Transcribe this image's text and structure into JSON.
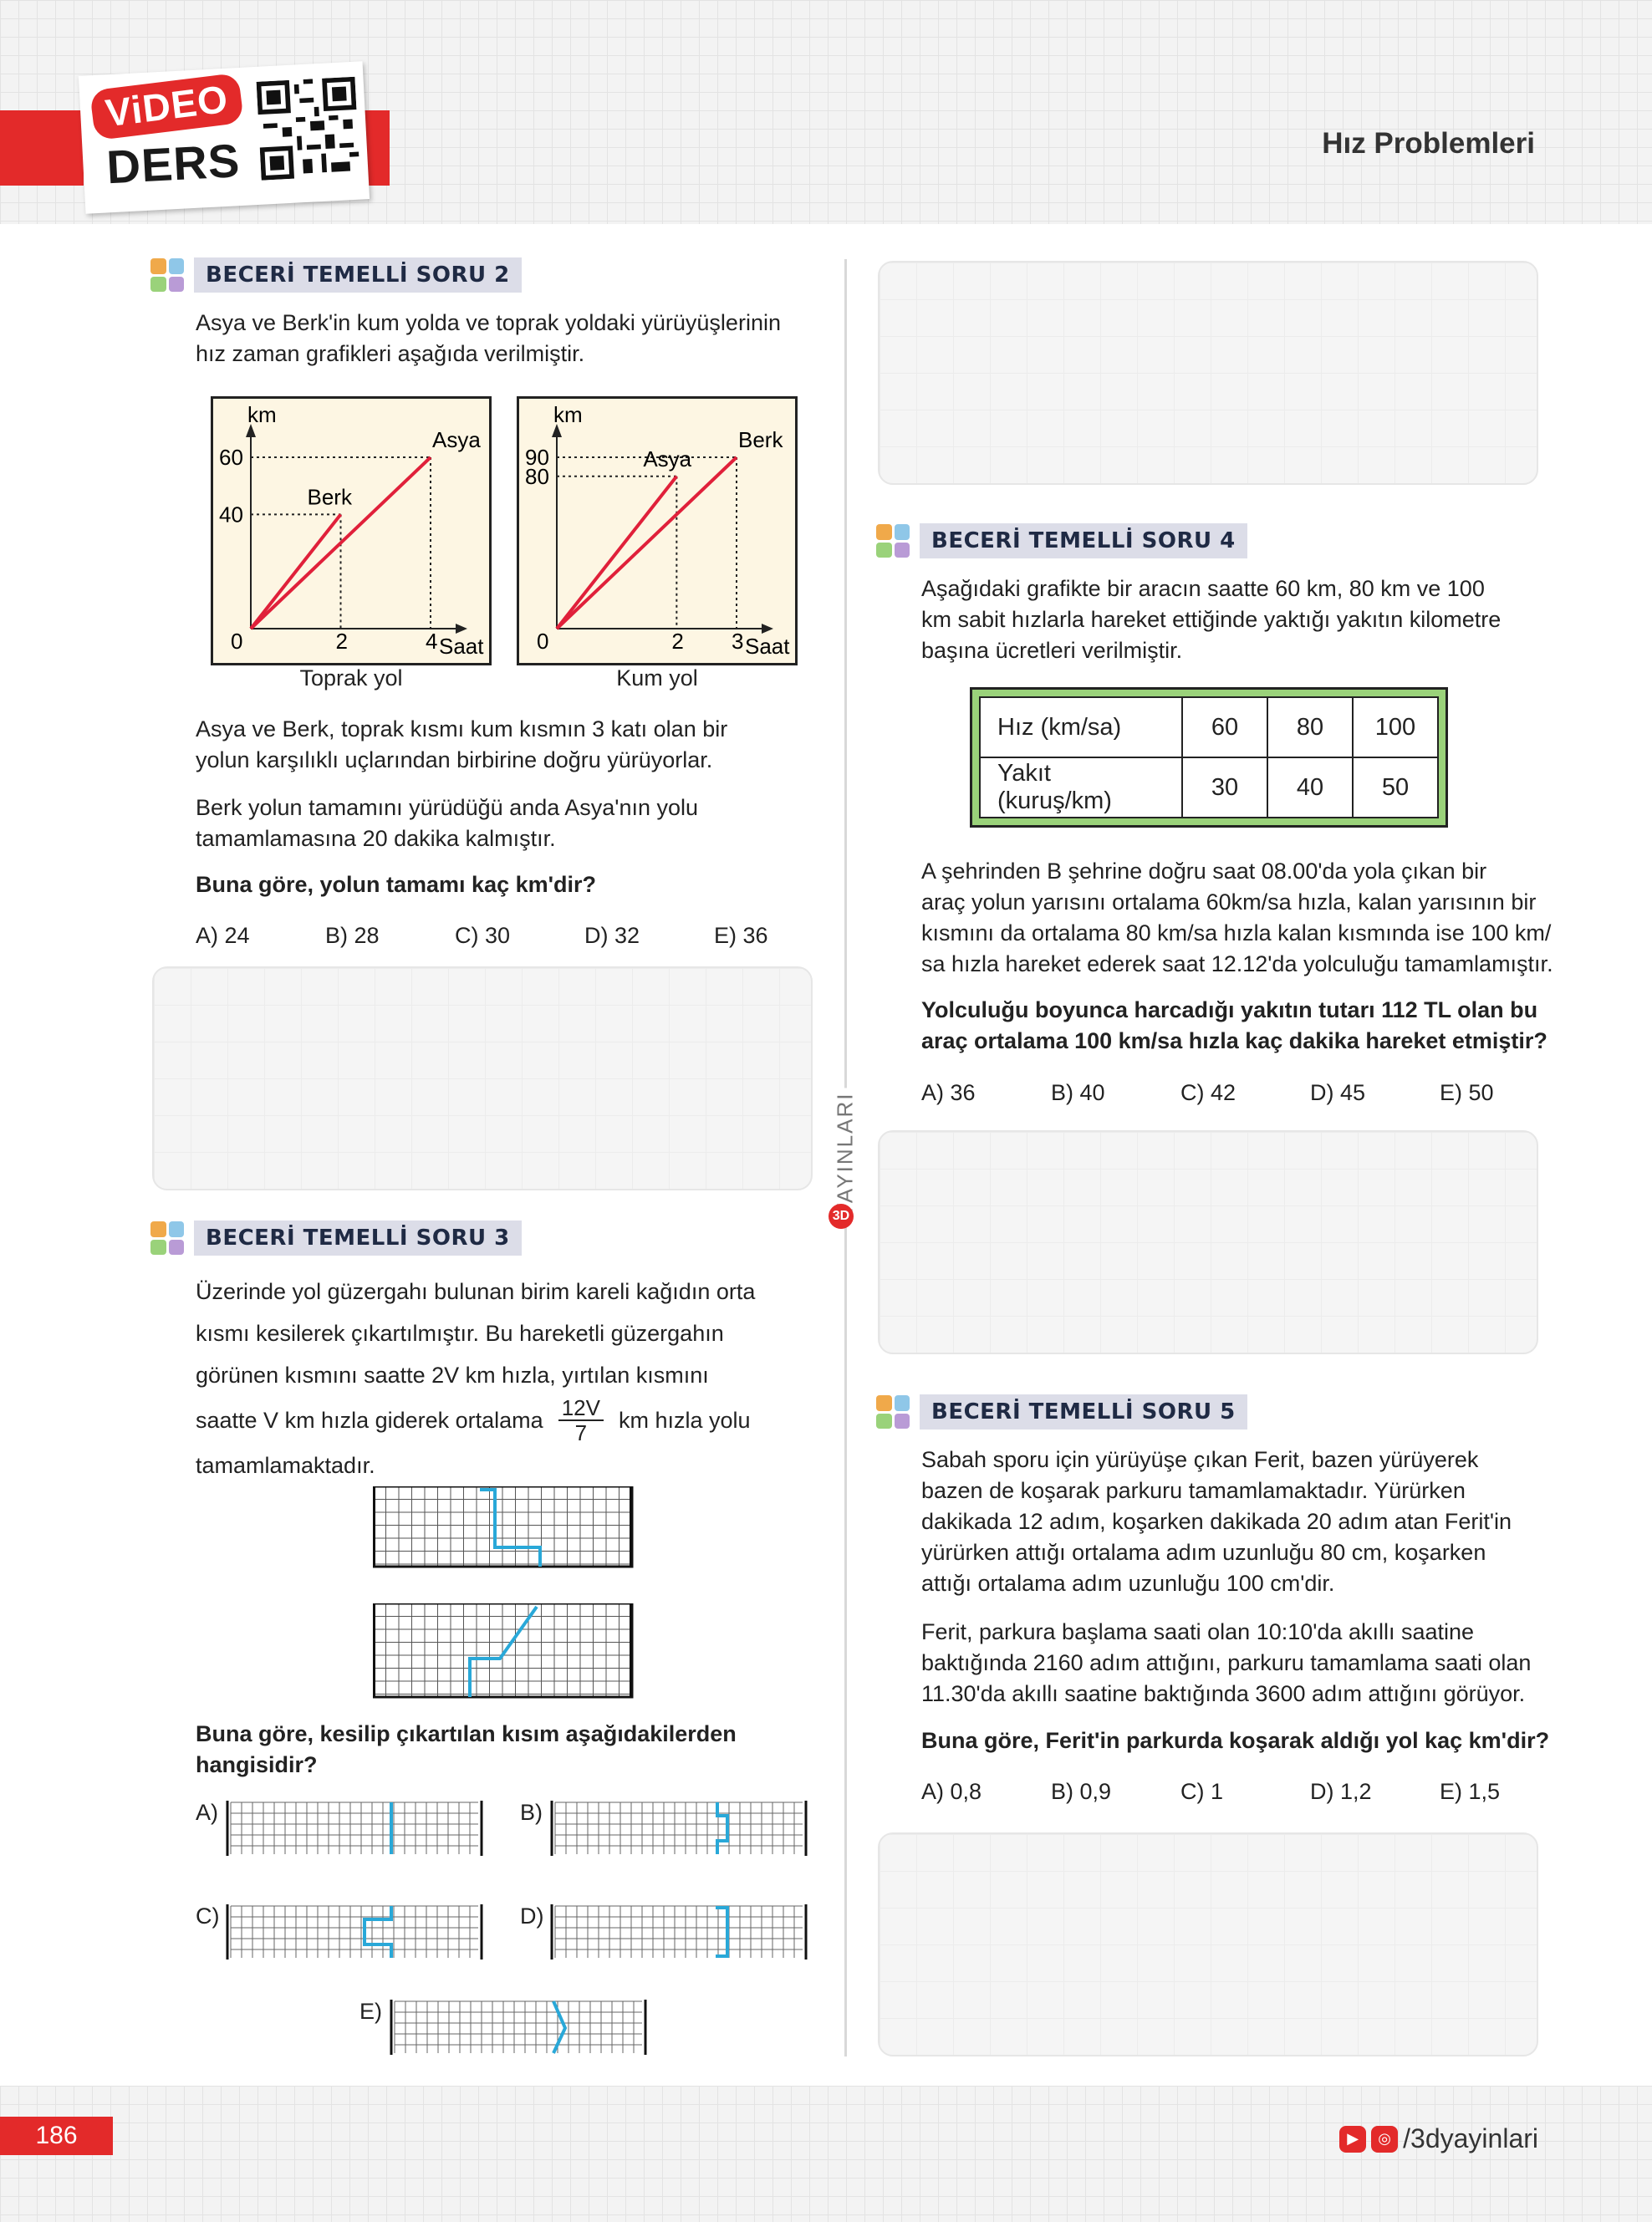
{
  "header": {
    "video_label": "ViDEO",
    "ders_label": "DERS",
    "chapter_title": "Hız Problemleri"
  },
  "footer": {
    "page_number": "186",
    "social_handle": "/3dyayinlari"
  },
  "brand": {
    "vertical_text": "YAYINLARI",
    "mark": "3D"
  },
  "q2": {
    "label": "BECERİ TEMELLİ SORU 2",
    "intro": [
      "Asya ve Berk'in kum yolda ve toprak yoldaki yürüyüşlerinin",
      "hız zaman grafikleri aşağıda verilmiştir."
    ],
    "p1": [
      "Asya ve Berk, toprak kısmı kum kısmın 3 katı olan bir",
      "yolun karşılıklı uçlarından birbirine doğru yürüyorlar."
    ],
    "p2": [
      "Berk yolun tamamını yürüdüğü anda Asya'nın yolu",
      "tamamlamasına 20 dakika kalmıştır."
    ],
    "question": "Buna göre, yolun tamamı kaç km'dir?",
    "options": [
      "A) 24",
      "B) 28",
      "C) 30",
      "D) 32",
      "E) 36"
    ]
  },
  "chart_data": [
    {
      "type": "line",
      "title": "Toprak yol",
      "xlabel": "Saat",
      "ylabel": "km",
      "x_ticks": [
        "0",
        "2",
        "4"
      ],
      "y_ticks": [
        "40",
        "60"
      ],
      "series": [
        {
          "name": "Berk",
          "x": [
            0,
            2
          ],
          "y": [
            0,
            40
          ]
        },
        {
          "name": "Asya",
          "x": [
            0,
            4
          ],
          "y": [
            0,
            60
          ]
        }
      ],
      "colors": {
        "line": "#e0203a"
      }
    },
    {
      "type": "line",
      "title": "Kum yol",
      "xlabel": "Saat",
      "ylabel": "km",
      "x_ticks": [
        "0",
        "2",
        "3"
      ],
      "y_ticks": [
        "80",
        "90"
      ],
      "series": [
        {
          "name": "Asya",
          "x": [
            0,
            2
          ],
          "y": [
            0,
            80
          ]
        },
        {
          "name": "Berk",
          "x": [
            0,
            3
          ],
          "y": [
            0,
            90
          ]
        }
      ],
      "colors": {
        "line": "#e0203a"
      }
    }
  ],
  "q3": {
    "label": "BECERİ TEMELLİ SORU 3",
    "p1": "Üzerinde yol güzergahı bulunan birim kareli kağıdın orta",
    "p2": "kısmı kesilerek çıkartılmıştır. Bu hareketli güzergahın",
    "p3": "görünen kısmını saatte 2V km hızla, yırtılan kısmını",
    "p4_pre": "saatte V km hızla giderek ortalama",
    "frac_num": "12V",
    "frac_den": "7",
    "p4_post": "km hızla yolu",
    "p5": "tamamlamaktadır.",
    "question": [
      "Buna göre, kesilip çıkartılan kısım aşağıdakilerden",
      "hangisidir?"
    ],
    "option_letters": [
      "A)",
      "B)",
      "C)",
      "D)",
      "E)"
    ]
  },
  "q4": {
    "label": "BECERİ TEMELLİ SORU 4",
    "intro": [
      "Aşağıdaki grafikte bir aracın saatte 60 km, 80 km ve 100",
      "km sabit hızlarla hareket ettiğinde yaktığı yakıtın kilometre",
      "başına ücretleri verilmiştir."
    ],
    "table": {
      "row1": [
        "Hız (km/sa)",
        "60",
        "80",
        "100"
      ],
      "row2": [
        "Yakıt (kuruş/km)",
        "30",
        "40",
        "50"
      ]
    },
    "p1": [
      "A şehrinden B şehrine doğru saat 08.00'da yola çıkan bir",
      "araç yolun yarısını ortalama 60km/sa hızla, kalan yarısının bir",
      "kısmını da ortalama 80 km/sa hızla kalan kısmında ise 100 km/",
      "sa hızla hareket ederek saat 12.12'da yolculuğu tamamlamıştır."
    ],
    "question": [
      "Yolculuğu boyunca harcadığı yakıtın tutarı 112 TL olan bu",
      "araç ortalama 100 km/sa hızla kaç dakika hareket etmiştir?"
    ],
    "options": [
      "A) 36",
      "B) 40",
      "C) 42",
      "D) 45",
      "E) 50"
    ]
  },
  "q5": {
    "label": "BECERİ TEMELLİ SORU 5",
    "p1": [
      "Sabah sporu için yürüyüşe çıkan Ferit, bazen yürüyerek",
      "bazen de koşarak parkuru tamamlamaktadır. Yürürken",
      "dakikada 12 adım, koşarken dakikada 20 adım atan Ferit'in",
      "yürürken attığı ortalama adım uzunluğu 80 cm, koşarken",
      "attığı ortalama adım uzunluğu 100 cm'dir."
    ],
    "p2": [
      "Ferit, parkura başlama saati olan 10:10'da akıllı saatine",
      "baktığında 2160 adım attığını, parkuru tamamlama saati olan",
      "11.30'da akıllı saatine baktığında 3600 adım attığını görüyor."
    ],
    "question": "Buna göre, Ferit'in parkurda koşarak aldığı yol kaç km'dir?",
    "options": [
      "A) 0,8",
      "B) 0,9",
      "C) 1",
      "D) 1,2",
      "E) 1,5"
    ]
  },
  "colors": {
    "accent": "#e32a2a",
    "path": "#29a8d8",
    "table_frame": "#9ad27a"
  }
}
